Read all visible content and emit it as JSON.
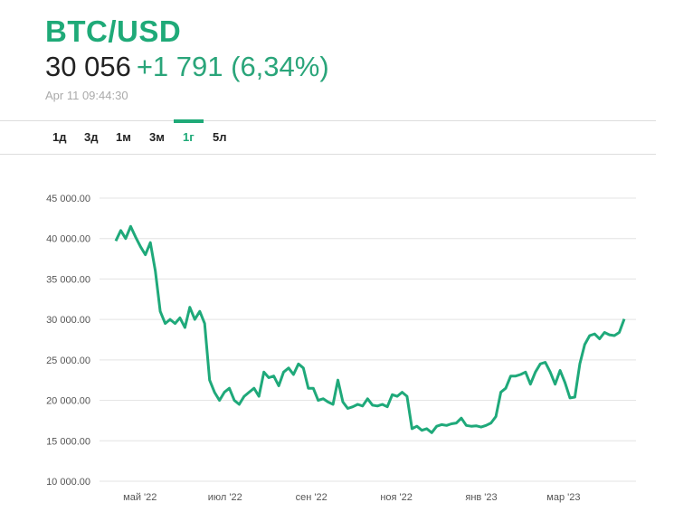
{
  "header": {
    "title": "BTC/USD",
    "price": "30 056",
    "change": "+1 791 (6,34%)",
    "timestamp": "Apr 11 09:44:30"
  },
  "tabs": [
    {
      "label": "1д"
    },
    {
      "label": "3д"
    },
    {
      "label": "1м"
    },
    {
      "label": "3м"
    },
    {
      "label": "1г",
      "active": true
    },
    {
      "label": "5л"
    }
  ],
  "colors": {
    "accent": "#1faa78",
    "line": "#1fa97a"
  },
  "chart_data": {
    "type": "line",
    "title": "BTC/USD",
    "start_date": "2022-04-11",
    "end_date": "2023-04-11",
    "ylim": [
      10000,
      45000
    ],
    "yticks": [
      {
        "v": 45000,
        "label": "45 000.00"
      },
      {
        "v": 40000,
        "label": "40 000.00"
      },
      {
        "v": 35000,
        "label": "35 000.00"
      },
      {
        "v": 30000,
        "label": "30 000.00"
      },
      {
        "v": 25000,
        "label": "25 000.00"
      },
      {
        "v": 20000,
        "label": "20 000.00"
      },
      {
        "v": 15000,
        "label": "15 000.00"
      },
      {
        "v": 10000,
        "label": "10 000.00"
      }
    ],
    "xticks": [
      {
        "date": "2022-05-01",
        "label": "май '22"
      },
      {
        "date": "2022-07-01",
        "label": "июл '22"
      },
      {
        "date": "2022-09-01",
        "label": "сен '22"
      },
      {
        "date": "2022-11-01",
        "label": "ноя '22"
      },
      {
        "date": "2023-01-01",
        "label": "янв '23"
      },
      {
        "date": "2023-03-01",
        "label": "мар '23"
      }
    ],
    "values": [
      39700,
      41000,
      40000,
      41500,
      40200,
      39000,
      38000,
      39500,
      36000,
      31000,
      29500,
      30000,
      29500,
      30200,
      29000,
      31500,
      30000,
      31000,
      29500,
      22500,
      21000,
      20000,
      21000,
      21500,
      20000,
      19500,
      20500,
      21000,
      21500,
      20500,
      23500,
      22800,
      23000,
      21800,
      23500,
      24000,
      23200,
      24500,
      24000,
      21500,
      21500,
      20000,
      20200,
      19800,
      19500,
      22500,
      19800,
      19000,
      19200,
      19500,
      19300,
      20200,
      19400,
      19300,
      19500,
      19200,
      20700,
      20500,
      21000,
      20500,
      16500,
      16800,
      16300,
      16500,
      16000,
      16800,
      17000,
      16900,
      17100,
      17200,
      17800,
      16900,
      16800,
      16850,
      16700,
      16900,
      17200,
      18000,
      21000,
      21500,
      23000,
      23000,
      23200,
      23500,
      22000,
      23500,
      24500,
      24700,
      23500,
      22000,
      23700,
      22200,
      20300,
      20400,
      24500,
      26900,
      28000,
      28200,
      27600,
      28400,
      28100,
      28000,
      28400,
      30056
    ]
  }
}
